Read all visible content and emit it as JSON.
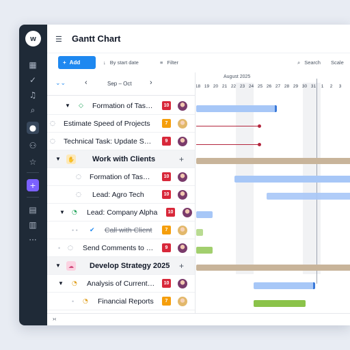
{
  "app": {
    "title": "Gantt Chart",
    "logo": "w"
  },
  "sidebar": {
    "icons": [
      "dashboard-icon",
      "check-icon",
      "bell-icon",
      "search-icon",
      "chat-icon",
      "users-icon",
      "star-icon",
      "plus-icon",
      "table-icon",
      "bars-icon",
      "more-icon"
    ]
  },
  "toolbar": {
    "add_label": "Add",
    "sort_label": "By start date",
    "filter_label": "Filter",
    "search_label": "Search",
    "scale_label": "Scale"
  },
  "nav": {
    "range": "Sep – Oct"
  },
  "timeline": {
    "month": "August 2025",
    "days": [
      "18",
      "19",
      "20",
      "21",
      "22",
      "23",
      "24",
      "25",
      "26",
      "27",
      "28",
      "29",
      "30",
      "31",
      "1",
      "2",
      "3"
    ]
  },
  "rows": [
    {
      "label": "Formation of Tas…",
      "count": "10",
      "badge": "red",
      "avatar": "a1"
    },
    {
      "label": "Estimate Speed of Projects",
      "count": "7",
      "badge": "orange",
      "avatar": "a2"
    },
    {
      "label": "Technical Task: Update S…",
      "count": "9",
      "badge": "red",
      "avatar": "a1"
    },
    {
      "label": "Work with Clients"
    },
    {
      "label": "Formation of Tas…",
      "count": "10",
      "badge": "red",
      "avatar": "a1"
    },
    {
      "label": "Lead: Agro Tech",
      "count": "10",
      "badge": "red",
      "avatar": "a1"
    },
    {
      "label": "Lead: Company Alpha",
      "count": "10",
      "badge": "red",
      "avatar": "a1"
    },
    {
      "label": "Call with Client",
      "count": "7",
      "badge": "orange",
      "avatar": "a2"
    },
    {
      "label": "Send Comments to …",
      "count": "9",
      "badge": "red",
      "avatar": "a1"
    },
    {
      "label": "Develop Strategy 2025"
    },
    {
      "label": "Analysis of Current…",
      "count": "10",
      "badge": "red",
      "avatar": "a1"
    },
    {
      "label": "Financial Reports",
      "count": "7",
      "badge": "orange",
      "avatar": "a2"
    }
  ],
  "bottom": {
    "collapse_label": "›‹"
  },
  "colors": {
    "accent": "#1e88f0",
    "sidebar": "#1f2a37",
    "red_badge": "#d8283a",
    "orange_badge": "#f59e0b"
  }
}
